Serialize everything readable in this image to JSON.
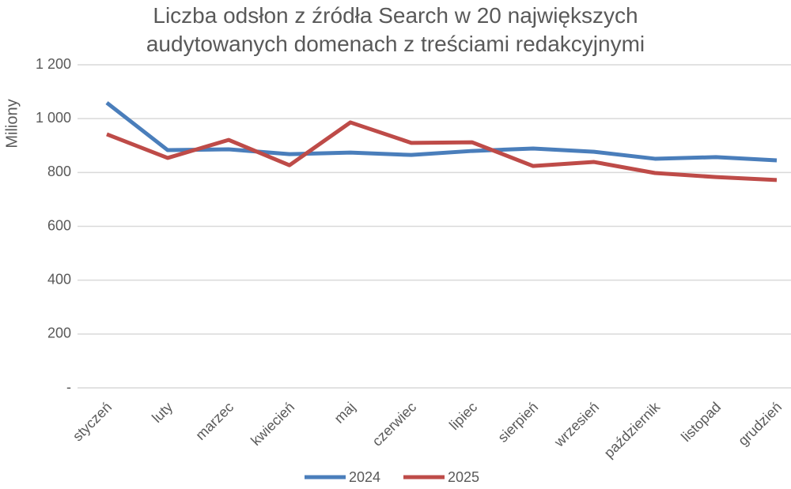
{
  "chart_data": {
    "type": "line",
    "title": "Liczba odsłon z źródła Search w 20 największych audytowanych domenach z treściami redakcyjnymi",
    "y_label": "Miliony",
    "categories": [
      "styczeń",
      "luty",
      "marzec",
      "kwiecień",
      "maj",
      "czerwiec",
      "lipiec",
      "sierpień",
      "wrzesień",
      "październik",
      "listopad",
      "grudzień"
    ],
    "series": [
      {
        "name": "2024",
        "color": "#4a7ebb",
        "values": [
          1059,
          883,
          886,
          868,
          874,
          865,
          880,
          889,
          877,
          851,
          857,
          845
        ]
      },
      {
        "name": "2025",
        "color": "#be4b48",
        "values": [
          942,
          854,
          921,
          827,
          986,
          910,
          912,
          824,
          839,
          798,
          783,
          772
        ]
      }
    ],
    "ylim": [
      0,
      1200
    ],
    "yticks": [
      {
        "value": 0,
        "label": "-"
      },
      200,
      400,
      600,
      800,
      {
        "value": 1000,
        "label": "1 000"
      },
      {
        "value": 1200,
        "label": "1 200"
      }
    ],
    "grid": true,
    "legend": "bottom"
  }
}
